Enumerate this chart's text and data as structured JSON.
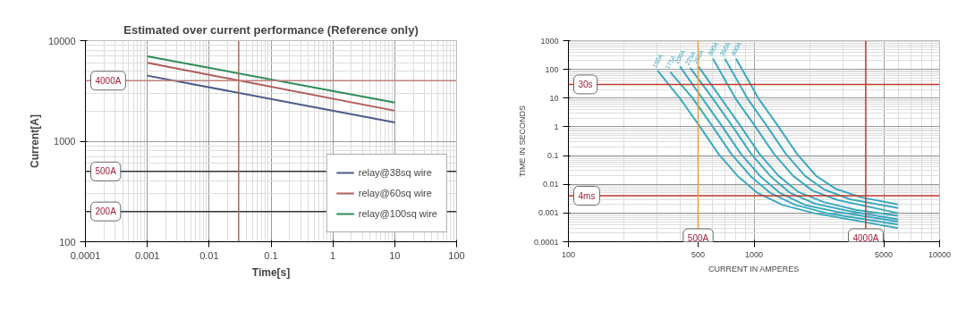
{
  "chart_data": [
    {
      "type": "line",
      "title": "Estimated over current performance (Reference only)",
      "xlabel": "Time[s]",
      "ylabel": "Current[A]",
      "log": "xy",
      "grid": true,
      "legend": "bottom right",
      "xlim": [
        0.0001,
        100
      ],
      "ylim": [
        100,
        10000
      ],
      "xticks": [
        0.0001,
        0.001,
        0.01,
        0.1,
        1,
        10,
        100
      ],
      "yticks": [
        100,
        1000,
        10000
      ],
      "x": [
        0.001,
        10
      ],
      "series": [
        {
          "name": "relay@38sq wire",
          "color": "#4a5a8a",
          "values": [
            4490,
            1540
          ]
        },
        {
          "name": "relay@60sq wire",
          "color": "#b05a5a",
          "values": [
            6030,
            2010
          ]
        },
        {
          "name": "relay@100sq wire",
          "color": "#2e8b57",
          "values": [
            7000,
            2420
          ]
        }
      ],
      "ref_lines": [
        {
          "axis": "y",
          "value": 4000,
          "label": "4000A",
          "color": "#c08080"
        },
        {
          "axis": "y",
          "value": 500,
          "label": "500A",
          "color": "#333333"
        },
        {
          "axis": "y",
          "value": 200,
          "label": "200A",
          "color": "#333333"
        },
        {
          "axis": "x",
          "value": 0.03,
          "color": "#a07060"
        }
      ]
    },
    {
      "type": "line",
      "xlabel": "CURRENT IN AMPERES",
      "ylabel": "TIME IN SECONDS",
      "log": "xy",
      "grid": true,
      "xlim": [
        100,
        10000
      ],
      "ylim": [
        0.0001,
        1000
      ],
      "xticks": [
        100,
        500,
        1000,
        5000,
        10000
      ],
      "yticks": [
        0.0001,
        0.001,
        0.01,
        0.1,
        1,
        10,
        100,
        1000
      ],
      "series": [
        {
          "name": "150A",
          "color": "#3ba9c0",
          "x": [
            302,
            399,
            507,
            643,
            816,
            1038,
            1426,
            2120,
            5970
          ],
          "values": [
            91,
            9.8,
            1.1,
            0.115,
            0.0195,
            0.0051,
            0.0019,
            0.00098,
            0.0003
          ]
        },
        {
          "name": "175A",
          "color": "#3ba9c0",
          "x": [
            354,
            468,
            594,
            754,
            956,
            1217,
            1671,
            2485,
            5970
          ],
          "values": [
            81,
            9.8,
            1.1,
            0.115,
            0.0195,
            0.0051,
            0.0019,
            0.00098,
            0.0004
          ]
        },
        {
          "name": "200A",
          "color": "#3ba9c0",
          "x": [
            399,
            527,
            670,
            849,
            1078,
            1371,
            1884,
            2800,
            5970
          ],
          "values": [
            126,
            9.8,
            1.1,
            0.115,
            0.0195,
            0.0051,
            0.0019,
            0.0011,
            0.0005
          ]
        },
        {
          "name": "225A",
          "color": "#3ba9c0",
          "x": [
            453,
            599,
            761,
            965,
            1224,
            1557,
            2139,
            3180,
            5970
          ],
          "values": [
            113,
            9.8,
            1.1,
            0.115,
            0.0195,
            0.0051,
            0.0021,
            0.0012,
            0.0006
          ]
        },
        {
          "name": "250A",
          "color": "#3ba9c0",
          "x": [
            502,
            664,
            843,
            1069,
            1357,
            1726,
            2371,
            3526,
            5970
          ],
          "values": [
            126,
            9.8,
            1.1,
            0.115,
            0.0195,
            0.0055,
            0.0024,
            0.0013,
            0.0008
          ]
        },
        {
          "name": "300A",
          "color": "#3ba9c0",
          "x": [
            601,
            794,
            1009,
            1280,
            1625,
            2067,
            2839,
            5970
          ],
          "values": [
            236,
            9.8,
            1.1,
            0.115,
            0.0195,
            0.006,
            0.0028,
            0.001
          ]
        },
        {
          "name": "350A",
          "color": "#3ba9c0",
          "x": [
            697,
            921,
            1170,
            1483,
            1883,
            2395,
            3290,
            5970
          ],
          "values": [
            236,
            9.8,
            1.1,
            0.115,
            0.0195,
            0.0065,
            0.003,
            0.0015
          ]
        },
        {
          "name": "400A",
          "color": "#3ba9c0",
          "x": [
            800,
            1057,
            1343,
            1703,
            2162,
            2750,
            3777,
            5970
          ],
          "values": [
            236,
            9.8,
            1.1,
            0.115,
            0.0195,
            0.007,
            0.0035,
            0.002
          ]
        }
      ],
      "ref_lines": [
        {
          "axis": "y",
          "value": 30,
          "label": "30s",
          "color": "#c0392b"
        },
        {
          "axis": "y",
          "value": 0.004,
          "label": "4ms",
          "color": "#c0392b"
        },
        {
          "axis": "x",
          "value": 500,
          "label": "500A",
          "color": "#e8a040"
        },
        {
          "axis": "x",
          "value": 4000,
          "label": "4000A",
          "color": "#c0392b"
        }
      ]
    }
  ]
}
